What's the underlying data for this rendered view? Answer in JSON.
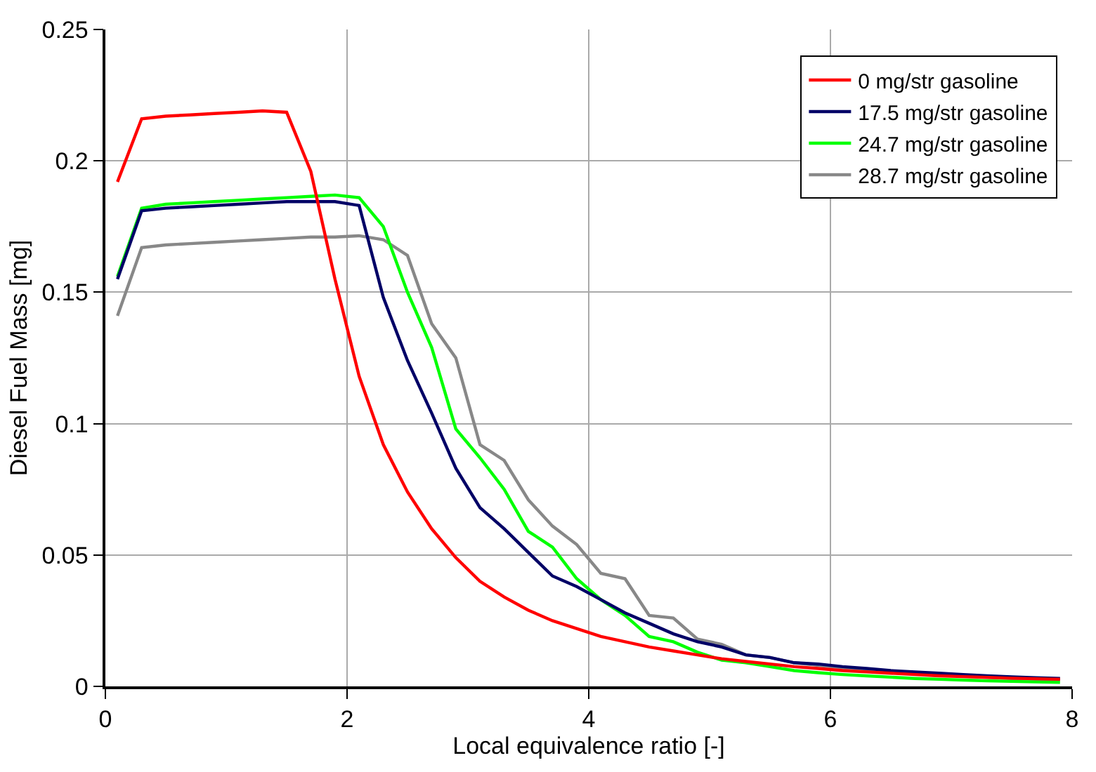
{
  "chart_data": {
    "type": "line",
    "xlabel": "Local equivalence ratio [-]",
    "ylabel": "Diesel Fuel Mass [mg]",
    "x": [
      0.1,
      0.3,
      0.5,
      0.7,
      0.9,
      1.1,
      1.3,
      1.5,
      1.7,
      1.9,
      2.1,
      2.3,
      2.5,
      2.7,
      2.9,
      3.1,
      3.3,
      3.5,
      3.7,
      3.9,
      4.1,
      4.3,
      4.5,
      4.7,
      4.9,
      5.1,
      5.3,
      5.5,
      5.7,
      5.9,
      6.1,
      6.3,
      6.5,
      6.7,
      6.9,
      7.1,
      7.3,
      7.5,
      7.7,
      7.9
    ],
    "series": [
      {
        "name": "0 mg/str gasoline",
        "color": "#ff0000",
        "values": [
          0.192,
          0.216,
          0.217,
          0.2175,
          0.218,
          0.2185,
          0.219,
          0.2185,
          0.196,
          0.155,
          0.118,
          0.092,
          0.074,
          0.06,
          0.049,
          0.04,
          0.034,
          0.029,
          0.025,
          0.022,
          0.019,
          0.017,
          0.015,
          0.0135,
          0.012,
          0.0105,
          0.0095,
          0.0085,
          0.0075,
          0.0068,
          0.006,
          0.0055,
          0.005,
          0.0045,
          0.004,
          0.0037,
          0.0034,
          0.0031,
          0.0029,
          0.0027
        ]
      },
      {
        "name": "17.5 mg/str gasoline",
        "color": "#000066",
        "values": [
          0.155,
          0.181,
          0.182,
          0.1825,
          0.183,
          0.1835,
          0.184,
          0.1845,
          0.1845,
          0.1845,
          0.183,
          0.148,
          0.124,
          0.104,
          0.083,
          0.068,
          0.06,
          0.051,
          0.042,
          0.038,
          0.033,
          0.028,
          0.024,
          0.02,
          0.017,
          0.015,
          0.012,
          0.011,
          0.009,
          0.0085,
          0.0075,
          0.0068,
          0.006,
          0.0055,
          0.005,
          0.0045,
          0.004,
          0.0036,
          0.0033,
          0.003
        ]
      },
      {
        "name": "24.7 mg/str gasoline",
        "color": "#00ff00",
        "values": [
          0.156,
          0.182,
          0.1835,
          0.184,
          0.1845,
          0.185,
          0.1855,
          0.186,
          0.1865,
          0.187,
          0.186,
          0.175,
          0.15,
          0.129,
          0.098,
          0.087,
          0.075,
          0.059,
          0.053,
          0.041,
          0.033,
          0.027,
          0.019,
          0.017,
          0.013,
          0.01,
          0.009,
          0.0075,
          0.006,
          0.0052,
          0.0045,
          0.004,
          0.0035,
          0.003,
          0.0027,
          0.0024,
          0.0021,
          0.0019,
          0.0017,
          0.0015
        ]
      },
      {
        "name": "28.7 mg/str gasoline",
        "color": "#888888",
        "values": [
          0.141,
          0.167,
          0.168,
          0.1685,
          0.169,
          0.1695,
          0.17,
          0.1705,
          0.171,
          0.171,
          0.1715,
          0.17,
          0.164,
          0.138,
          0.125,
          0.092,
          0.086,
          0.071,
          0.061,
          0.054,
          0.043,
          0.041,
          0.027,
          0.026,
          0.018,
          0.016,
          0.012,
          0.011,
          0.009,
          0.008,
          0.007,
          0.0062,
          0.0055,
          0.005,
          0.0045,
          0.004,
          0.0035,
          0.003,
          0.0027,
          0.0024
        ]
      }
    ],
    "xlim": [
      0,
      8
    ],
    "xticks": [
      0,
      2,
      4,
      6,
      8
    ],
    "ylim": [
      0,
      0.25
    ],
    "yticks": [
      0,
      0.05,
      0.1,
      0.15,
      0.2,
      0.25
    ],
    "grid": true,
    "legend": "top right",
    "marker": "none",
    "line_style": "solid"
  }
}
